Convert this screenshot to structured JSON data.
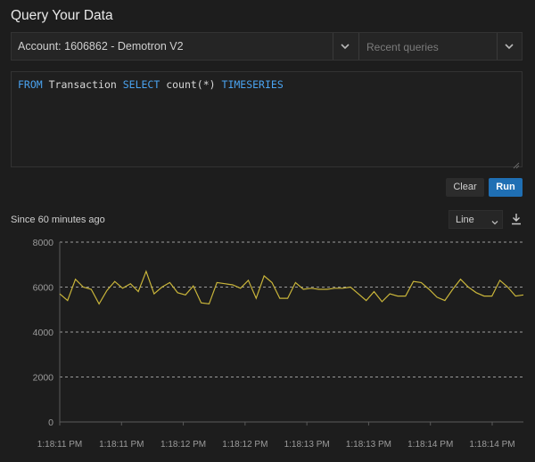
{
  "header": {
    "title": "Query Your Data"
  },
  "account": {
    "label": "Account: 1606862 - Demotron V2"
  },
  "recent": {
    "placeholder": "Recent queries"
  },
  "query": {
    "tokens": [
      "FROM",
      " Transaction ",
      "SELECT",
      " count(*) ",
      "TIMESERIES"
    ]
  },
  "buttons": {
    "clear": "Clear",
    "run": "Run"
  },
  "chart_header": {
    "since": "Since 60 minutes ago",
    "type_label": "Line"
  },
  "icons": {
    "account_dropdown": "chevron-down-icon",
    "recent_dropdown": "chevron-down-icon",
    "download": "download-icon",
    "resize": "resize-grip-icon"
  },
  "colors": {
    "series": "#c9b53a",
    "run_button": "#1f6fb4",
    "query_keyword": "#4aa3f0"
  },
  "chart_data": {
    "type": "line",
    "ylim": [
      0,
      8000
    ],
    "yticks": [
      0,
      2000,
      4000,
      6000,
      8000
    ],
    "grid": true,
    "xlabels": [
      "1:18:11 PM",
      "1:18:11 PM",
      "1:18:12 PM",
      "1:18:12 PM",
      "1:18:13 PM",
      "1:18:13 PM",
      "1:18:14 PM",
      "1:18:14 PM"
    ],
    "series": [
      {
        "values": [
          5700,
          5400,
          6350,
          6000,
          5900,
          5250,
          5850,
          6250,
          5950,
          6150,
          5800,
          6700,
          5700,
          6000,
          6200,
          5750,
          5650,
          6050,
          5300,
          5250,
          6200,
          6150,
          6100,
          5950,
          6300,
          5500,
          6500,
          6200,
          5500,
          5500,
          6200,
          5900,
          5950,
          5900,
          5900,
          5950,
          5950,
          6000,
          5700,
          5400,
          5800,
          5350,
          5700,
          5600,
          5600,
          6250,
          6200,
          5900,
          5550,
          5400,
          5900,
          6350,
          6000,
          5750,
          5600,
          5600,
          6300,
          6000,
          5600,
          5650
        ]
      }
    ]
  }
}
